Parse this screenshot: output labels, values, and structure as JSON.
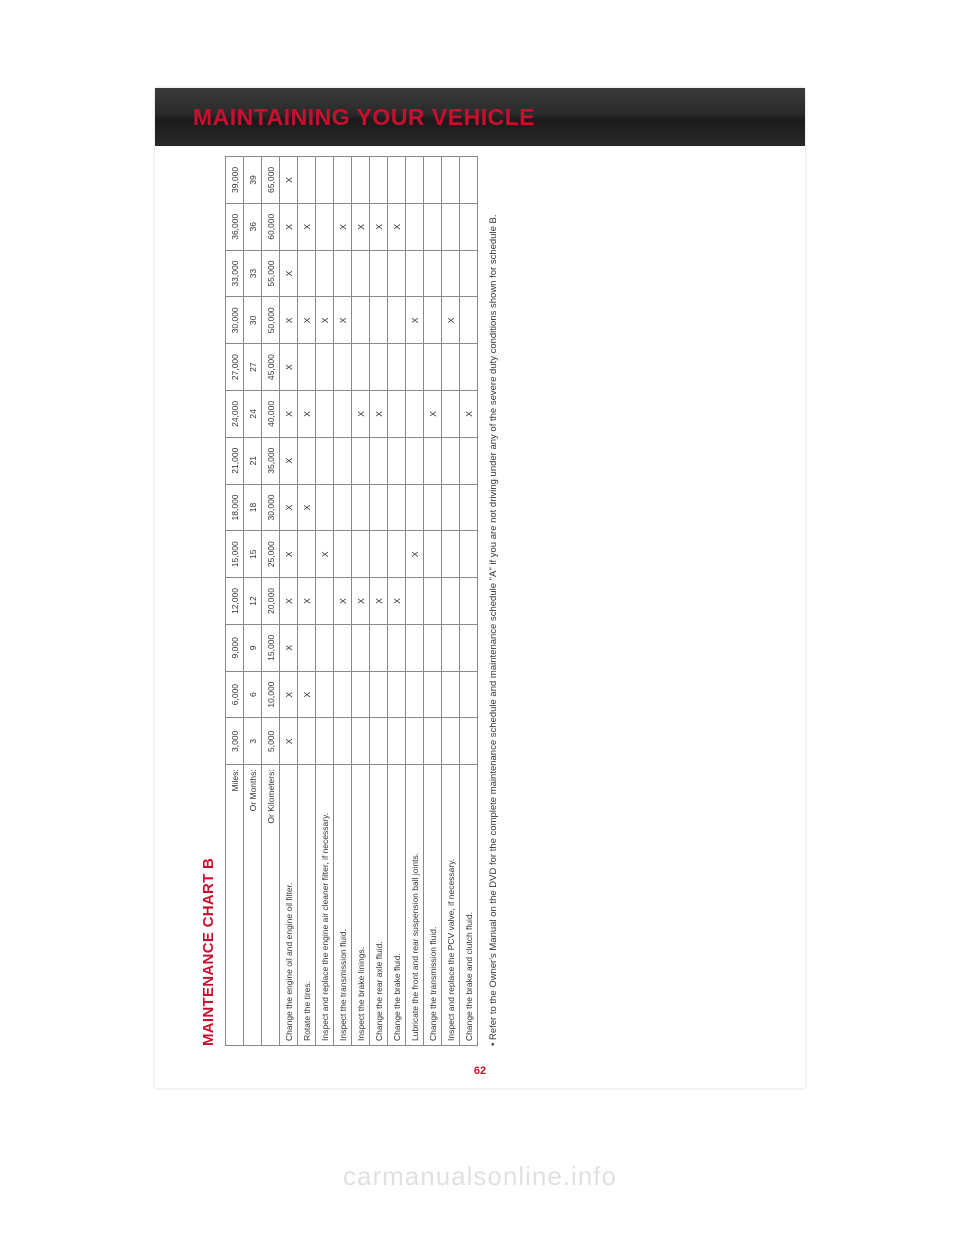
{
  "header": {
    "title": "MAINTAINING YOUR VEHICLE"
  },
  "section": {
    "title": "MAINTENANCE CHART B"
  },
  "table": {
    "header_labels": {
      "miles": "Miles:",
      "months": "Or Months:",
      "km": "Or Kilometers:"
    },
    "intervals": {
      "miles": [
        "3,000",
        "6,000",
        "9,000",
        "12,000",
        "15,000",
        "18,000",
        "21,000",
        "24,000",
        "27,000",
        "30,000",
        "33,000",
        "36,000",
        "39,000"
      ],
      "months": [
        "3",
        "6",
        "9",
        "12",
        "15",
        "18",
        "21",
        "24",
        "27",
        "30",
        "33",
        "36",
        "39"
      ],
      "km": [
        "5,000",
        "10,000",
        "15,000",
        "20,000",
        "25,000",
        "30,000",
        "35,000",
        "40,000",
        "45,000",
        "50,000",
        "55,000",
        "60,000",
        "65,000"
      ]
    },
    "rows": [
      {
        "label": "Change the engine oil and engine oil filter.",
        "marks": [
          "X",
          "X",
          "X",
          "X",
          "X",
          "X",
          "X",
          "X",
          "X",
          "X",
          "X",
          "X",
          "X"
        ]
      },
      {
        "label": "Rotate the tires.",
        "marks": [
          "",
          "X",
          "",
          "X",
          "",
          "X",
          "",
          "X",
          "",
          "X",
          "",
          "X",
          ""
        ]
      },
      {
        "label": "Inspect and replace the engine air cleaner filter, if necessary.",
        "marks": [
          "",
          "",
          "",
          "",
          "X",
          "",
          "",
          "",
          "",
          "X",
          "",
          "",
          ""
        ]
      },
      {
        "label": "Inspect the transmission fluid.",
        "marks": [
          "",
          "",
          "",
          "X",
          "",
          "",
          "",
          "",
          "",
          "X",
          "",
          "X",
          ""
        ]
      },
      {
        "label": "Inspect the brake linings.",
        "marks": [
          "",
          "",
          "",
          "X",
          "",
          "",
          "",
          "X",
          "",
          "",
          "",
          "X",
          ""
        ]
      },
      {
        "label": "Change the rear axle fluid.",
        "marks": [
          "",
          "",
          "",
          "X",
          "",
          "",
          "",
          "X",
          "",
          "",
          "",
          "X",
          ""
        ]
      },
      {
        "label": "Change the brake fluid.",
        "marks": [
          "",
          "",
          "",
          "X",
          "",
          "",
          "",
          "",
          "",
          "",
          "",
          "X",
          ""
        ]
      },
      {
        "label": "Lubricate the front and rear suspension ball joints.",
        "marks": [
          "",
          "",
          "",
          "",
          "X",
          "",
          "",
          "",
          "",
          "X",
          "",
          "",
          ""
        ]
      },
      {
        "label": "Change the transmission fluid.",
        "marks": [
          "",
          "",
          "",
          "",
          "",
          "",
          "",
          "X",
          "",
          "",
          "",
          "",
          ""
        ]
      },
      {
        "label": "Inspect and replace the PCV valve, if necessary.",
        "marks": [
          "",
          "",
          "",
          "",
          "",
          "",
          "",
          "",
          "",
          "X",
          "",
          "",
          ""
        ]
      },
      {
        "label": "Change the brake and clutch fluid.",
        "marks": [
          "",
          "",
          "",
          "",
          "",
          "",
          "",
          "X",
          "",
          "",
          "",
          "",
          ""
        ]
      }
    ]
  },
  "footnote": "•  Refer to the Owner's Manual on the DVD for the complete maintenance schedule and maintenance schedule \"A\" if you are not driving under any of the severe duty conditions shown for schedule B.",
  "page_number": "62",
  "watermark": "carmanualsonline.info",
  "colors": {
    "accent": "#c8102e",
    "text": "#333333",
    "border": "#888888",
    "header_bg_top": "#3a3a3a",
    "header_bg_bottom": "#1a1a1a"
  }
}
